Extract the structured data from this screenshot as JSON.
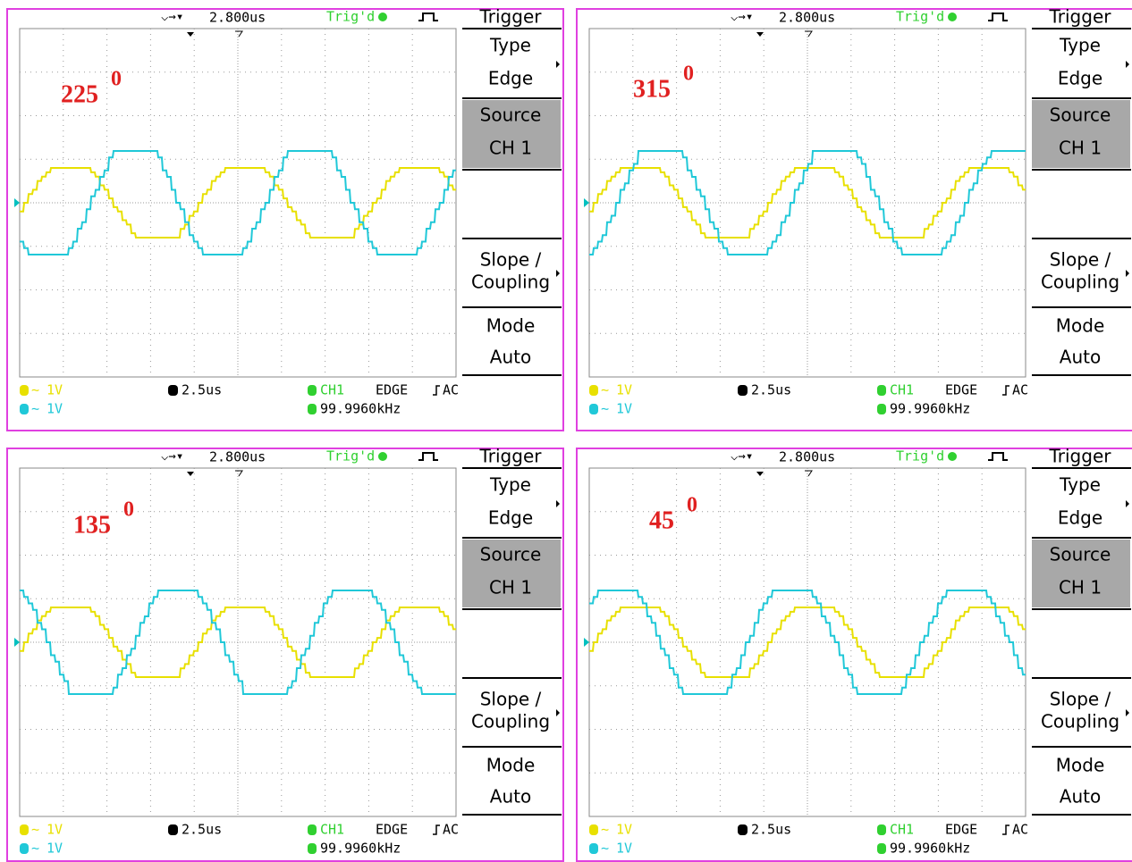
{
  "panels": [
    {
      "phase": "225",
      "phase_sup": "0",
      "timebase_top": "2.800us",
      "trig_status": "Trig'd",
      "menu_title": "Trigger",
      "menu": [
        [
          "Type",
          "Edge"
        ],
        [
          "Source",
          "CH 1"
        ],
        [
          "Slope /",
          "Coupling"
        ],
        [
          "Mode",
          "Auto"
        ]
      ],
      "ch1": "1V",
      "ch2": "1V",
      "timebase": "2.5us",
      "trig_source": "CH1",
      "trig_type": "EDGE",
      "coupling": "AC",
      "frequency": "99.9960kHz"
    },
    {
      "phase": "315",
      "phase_sup": "0",
      "timebase_top": "2.800us",
      "trig_status": "Trig'd",
      "menu_title": "Trigger",
      "menu": [
        [
          "Type",
          "Edge"
        ],
        [
          "Source",
          "CH 1"
        ],
        [
          "Slope /",
          "Coupling"
        ],
        [
          "Mode",
          "Auto"
        ]
      ],
      "ch1": "1V",
      "ch2": "1V",
      "timebase": "2.5us",
      "trig_source": "CH1",
      "trig_type": "EDGE",
      "coupling": "AC",
      "frequency": "99.9960kHz"
    },
    {
      "phase": "135",
      "phase_sup": "0",
      "timebase_top": "2.800us",
      "trig_status": "Trig'd",
      "menu_title": "Trigger",
      "menu": [
        [
          "Type",
          "Edge"
        ],
        [
          "Source",
          "CH 1"
        ],
        [
          "Slope /",
          "Coupling"
        ],
        [
          "Mode",
          "Auto"
        ]
      ],
      "ch1": "1V",
      "ch2": "1V",
      "timebase": "2.5us",
      "trig_source": "CH1",
      "trig_type": "EDGE",
      "coupling": "AC",
      "frequency": "99.9960kHz"
    },
    {
      "phase": "45",
      "phase_sup": "0",
      "timebase_top": "2.800us",
      "trig_status": "Trig'd",
      "menu_title": "Trigger",
      "menu": [
        [
          "Type",
          "Edge"
        ],
        [
          "Source",
          "CH 1"
        ],
        [
          "Slope /",
          "Coupling"
        ],
        [
          "Mode",
          "Auto"
        ]
      ],
      "ch1": "1V",
      "ch2": "1V",
      "timebase": "2.5us",
      "trig_source": "CH1",
      "trig_type": "EDGE",
      "coupling": "AC",
      "frequency": "99.9960kHz"
    }
  ]
}
